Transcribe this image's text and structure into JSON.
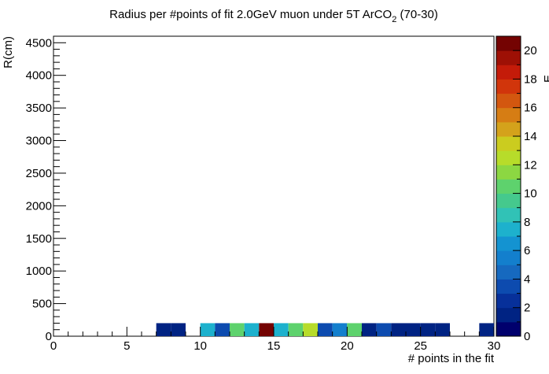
{
  "chart_data": {
    "type": "heatmap",
    "title": "Radius per #points of fit 2.0GeV muon under 5T ArCO",
    "title_subscript": "2",
    "title_suffix": " (70-30)",
    "xlabel": "# points in the fit",
    "ylabel": "R(cm)",
    "zlabel_fragment": "E",
    "xlim": [
      0,
      30
    ],
    "ylim": [
      0,
      4600
    ],
    "zlim": [
      0,
      21
    ],
    "x_ticks": [
      "0",
      "5",
      "10",
      "15",
      "20",
      "25",
      "30"
    ],
    "y_ticks": [
      "0",
      "500",
      "1000",
      "1500",
      "2000",
      "2500",
      "3000",
      "3500",
      "4000",
      "4500"
    ],
    "z_ticks": [
      "0",
      "2",
      "4",
      "6",
      "8",
      "10",
      "12",
      "14",
      "16",
      "18",
      "20"
    ],
    "grid": false,
    "bin_width_x": 1,
    "bin_y_range": [
      0,
      200
    ],
    "cells": [
      {
        "x": 7,
        "count": 1
      },
      {
        "x": 8,
        "count": 1
      },
      {
        "x": 10,
        "count": 7
      },
      {
        "x": 11,
        "count": 3
      },
      {
        "x": 12,
        "count": 10
      },
      {
        "x": 13,
        "count": 7
      },
      {
        "x": 14,
        "count": 21
      },
      {
        "x": 15,
        "count": 7
      },
      {
        "x": 16,
        "count": 10
      },
      {
        "x": 17,
        "count": 12
      },
      {
        "x": 18,
        "count": 3
      },
      {
        "x": 19,
        "count": 5
      },
      {
        "x": 20,
        "count": 10
      },
      {
        "x": 21,
        "count": 1
      },
      {
        "x": 22,
        "count": 3
      },
      {
        "x": 23,
        "count": 1
      },
      {
        "x": 24,
        "count": 1
      },
      {
        "x": 25,
        "count": 1
      },
      {
        "x": 26,
        "count": 1
      },
      {
        "x": 29,
        "count": 1
      }
    ],
    "palette": [
      "#00006d",
      "#002383",
      "#07309a",
      "#0d4baf",
      "#1669bf",
      "#137fcd",
      "#1493d1",
      "#1db1cd",
      "#31c2b6",
      "#45c98d",
      "#5ed26d",
      "#8cd742",
      "#b7dc2a",
      "#cbcc1f",
      "#d4a21b",
      "#d67d14",
      "#d3570f",
      "#d1350b",
      "#c41b09",
      "#9e1005",
      "#740302"
    ]
  }
}
